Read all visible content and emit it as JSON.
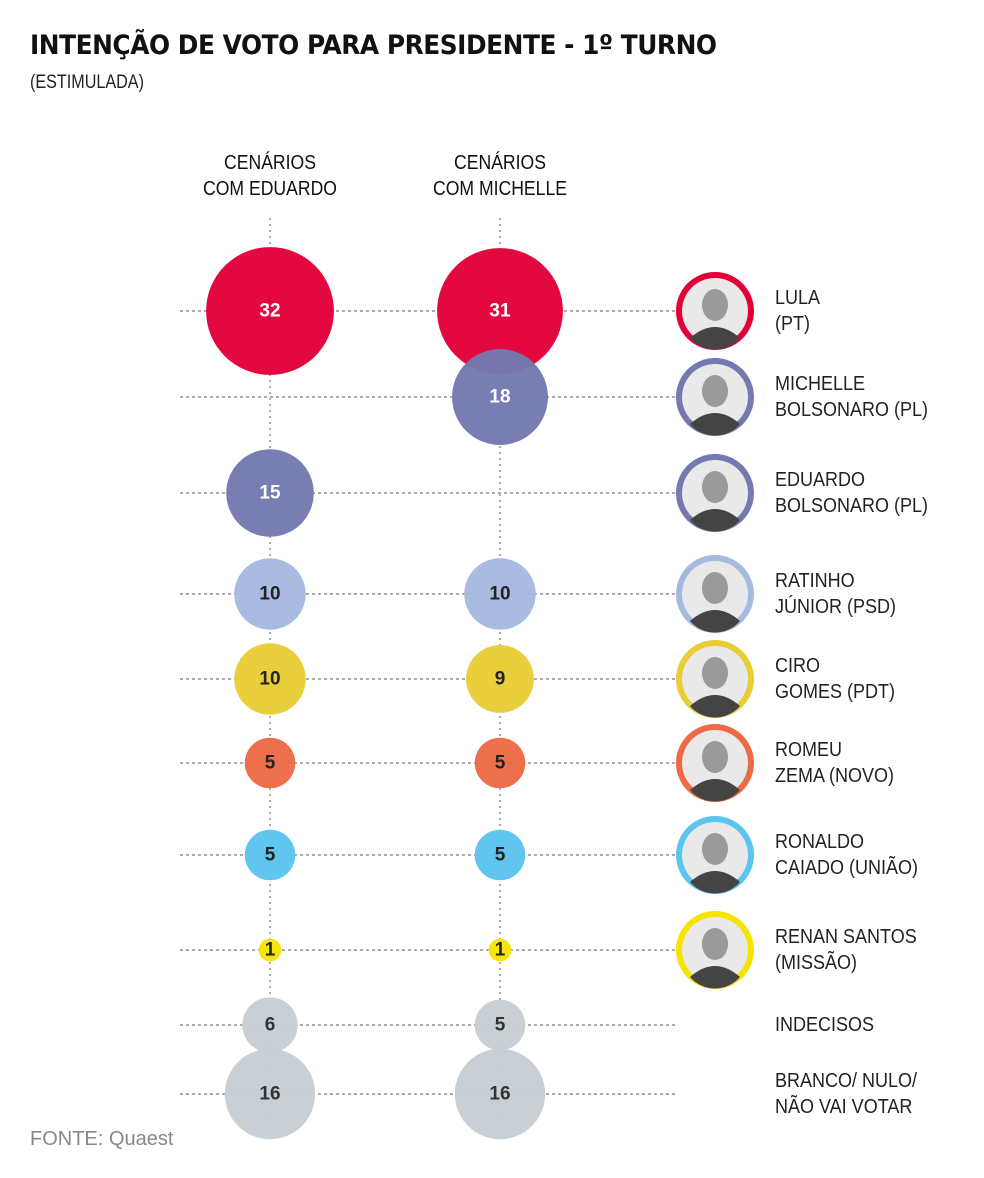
{
  "chart_data": {
    "type": "bubble",
    "title": "INTENÇÃO DE VOTO PARA PRESIDENTE - 1º TURNO",
    "subtitle": "(ESTIMULADA)",
    "columns": [
      "CENÁRIOS\nCOM EDUARDO",
      "CENÁRIOS\nCOM MICHELLE"
    ],
    "source": "FONTE: Quaest",
    "rows": [
      {
        "label": "LULA\n(PT)",
        "color": "#e2003a",
        "text_color": "#ffffff",
        "photo": true,
        "values": [
          32,
          31
        ]
      },
      {
        "label": "MICHELLE\nBOLSONARO (PL)",
        "color": "#7479b0",
        "text_color": "#ffffff",
        "photo": true,
        "values": [
          null,
          18
        ]
      },
      {
        "label": "EDUARDO\nBOLSONARO (PL)",
        "color": "#7479b0",
        "text_color": "#ffffff",
        "photo": true,
        "values": [
          15,
          null
        ]
      },
      {
        "label": "RATINHO\nJÚNIOR (PSD)",
        "color": "#a6b9df",
        "text_color": "#222222",
        "photo": true,
        "values": [
          10,
          10
        ]
      },
      {
        "label": "CIRO\nGOMES (PDT)",
        "color": "#e8cd35",
        "text_color": "#222222",
        "photo": true,
        "values": [
          10,
          9
        ]
      },
      {
        "label": "ROMEU\nZEMA (NOVO)",
        "color": "#ec6a45",
        "text_color": "#222222",
        "photo": true,
        "values": [
          5,
          5
        ]
      },
      {
        "label": "RONALDO\nCAIADO (UNIÃO)",
        "color": "#5bc4ef",
        "text_color": "#222222",
        "photo": true,
        "values": [
          5,
          5
        ]
      },
      {
        "label": "RENAN SANTOS\n(MISSÃO)",
        "color": "#f7e300",
        "text_color": "#222222",
        "photo": true,
        "values": [
          1,
          1
        ]
      },
      {
        "label": "INDECISOS",
        "color": "#c6ced4",
        "text_color": "#333333",
        "photo": false,
        "values": [
          6,
          5
        ]
      },
      {
        "label": "BRANCO/ NULO/\nNÃO VAI VOTAR",
        "color": "#c6ced4",
        "text_color": "#333333",
        "photo": false,
        "values": [
          16,
          16
        ]
      }
    ]
  }
}
